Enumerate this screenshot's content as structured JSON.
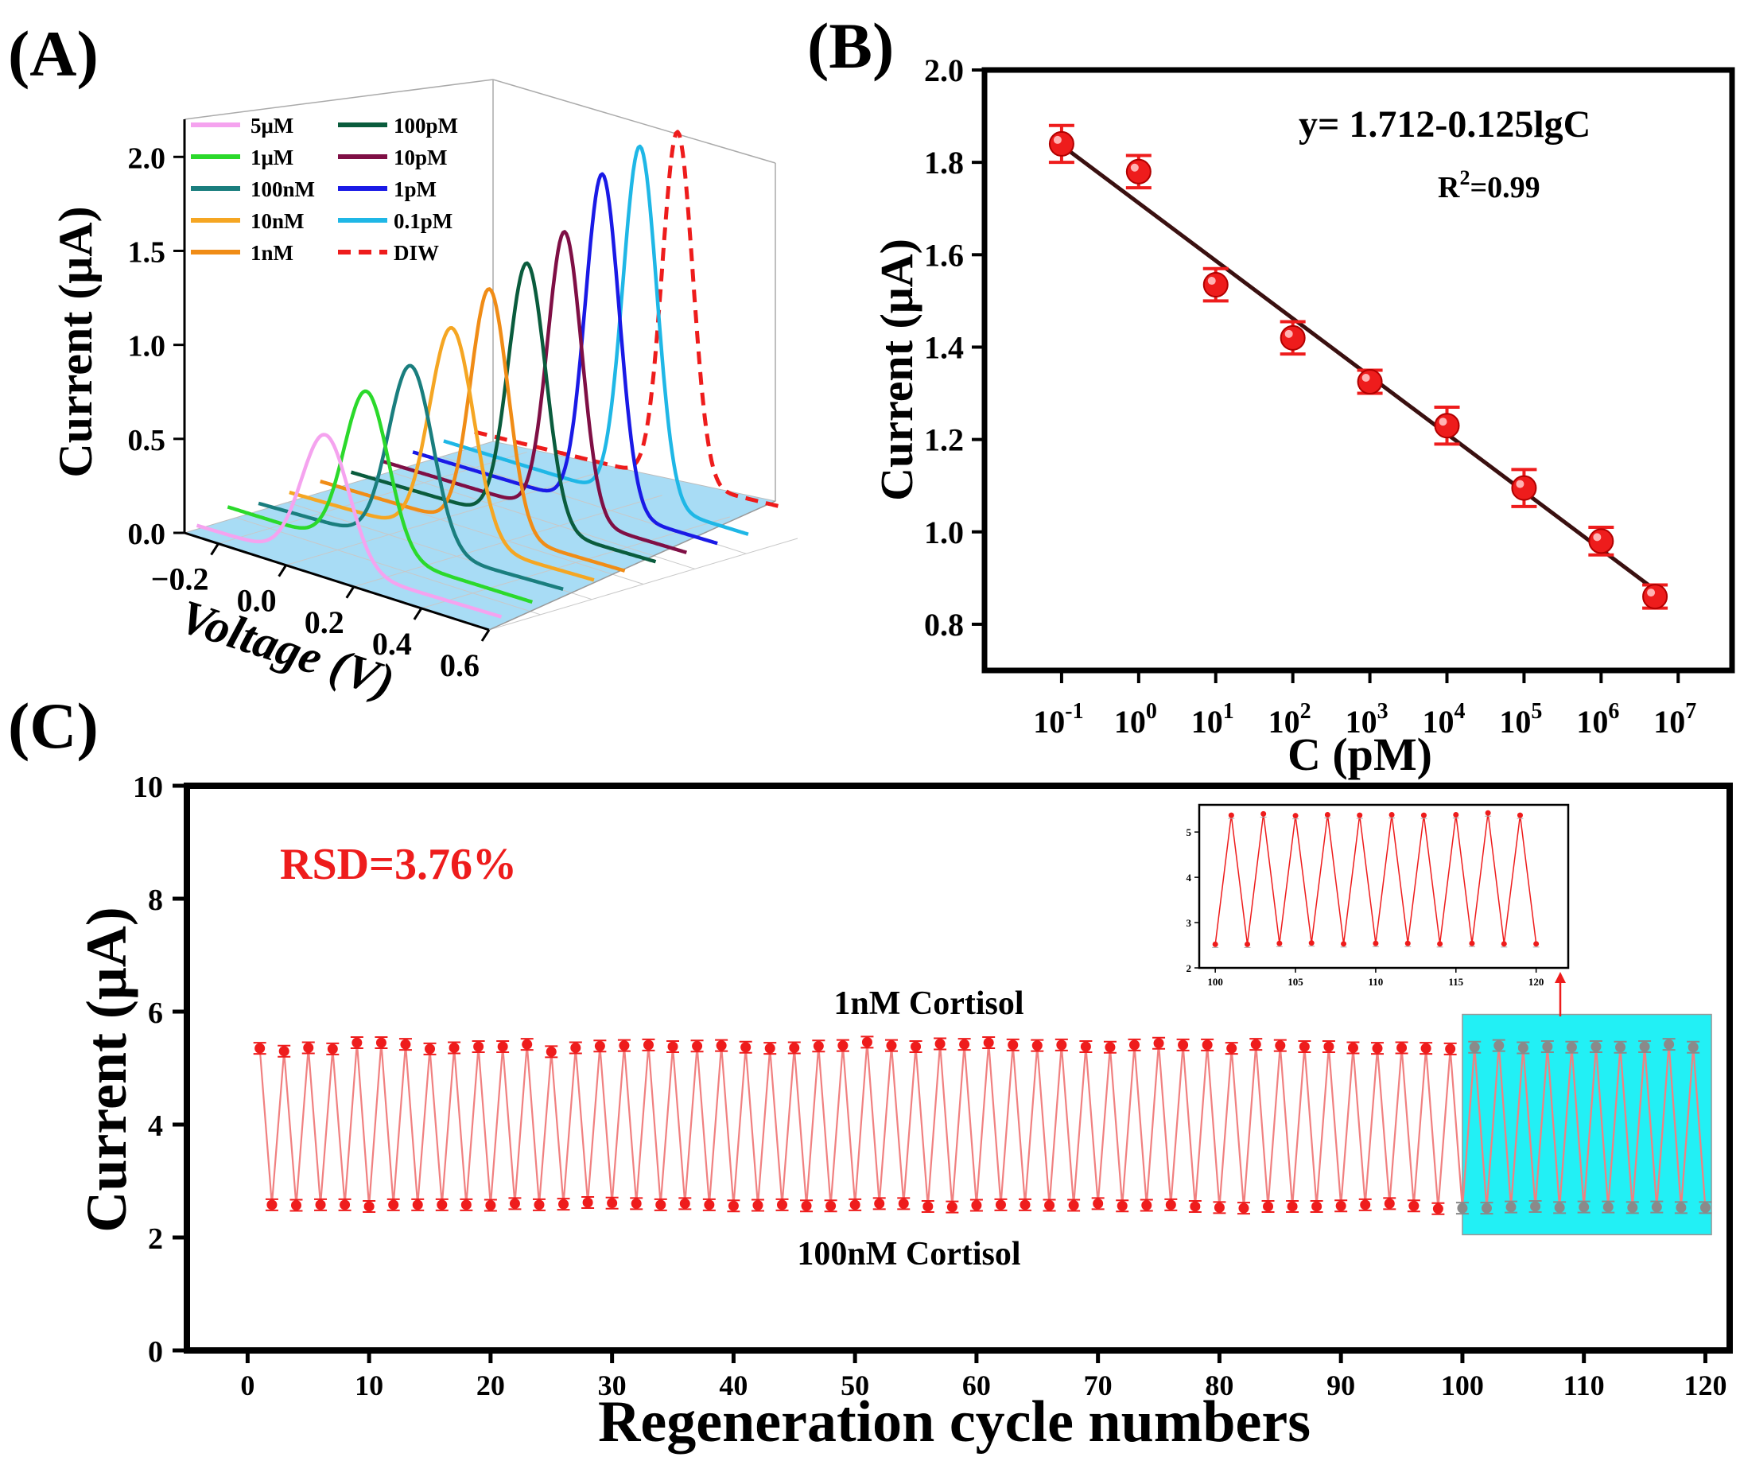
{
  "panels": {
    "a": "(A)",
    "b": "(B)",
    "c": "(C)"
  },
  "chart_data": [
    {
      "id": "A",
      "type": "line",
      "projection": "3d-waterfall",
      "xlabel": "Voltage (V)",
      "ylabel": "Current (μA)",
      "xlim": [
        -0.3,
        0.6
      ],
      "ylim": [
        0.0,
        2.2
      ],
      "xticks": [
        "−0.2",
        "0.0",
        "0.2",
        "0.4",
        "0.6"
      ],
      "xtick_values": [
        -0.2,
        0.0,
        0.2,
        0.4,
        0.6
      ],
      "yticks": [
        "0.0",
        "0.5",
        "1.0",
        "1.5",
        "2.0"
      ],
      "ytick_values": [
        0.0,
        0.5,
        1.0,
        1.5,
        2.0
      ],
      "floor_color": "#a8dcf5",
      "legend_position": "top-left",
      "series": [
        {
          "name": "5μM",
          "color": "#f5a3ef",
          "peak_v": 0.08,
          "peak_i": 0.72,
          "base_i": 0.02,
          "end_i": 0.05,
          "width": 0.07
        },
        {
          "name": "1μM",
          "color": "#2bd92b",
          "peak_v": 0.11,
          "peak_i": 0.92,
          "base_i": 0.07,
          "end_i": 0.08,
          "width": 0.065
        },
        {
          "name": "100nM",
          "color": "#1a7e7e",
          "peak_v": 0.15,
          "peak_i": 1.03,
          "base_i": 0.04,
          "end_i": 0.1,
          "width": 0.065
        },
        {
          "name": "10nM",
          "color": "#f5a623",
          "peak_v": 0.18,
          "peak_i": 1.2,
          "base_i": 0.05,
          "end_i": 0.1,
          "width": 0.065
        },
        {
          "name": "1nM",
          "color": "#f08c16",
          "peak_v": 0.2,
          "peak_i": 1.37,
          "base_i": 0.06,
          "end_i": 0.1,
          "width": 0.055
        },
        {
          "name": "100pM",
          "color": "#0a5c3d",
          "peak_v": 0.22,
          "peak_i": 1.47,
          "base_i": 0.06,
          "end_i": 0.1,
          "width": 0.055
        },
        {
          "name": "10pM",
          "color": "#7f0f45",
          "peak_v": 0.24,
          "peak_i": 1.6,
          "base_i": 0.07,
          "end_i": 0.1,
          "width": 0.05
        },
        {
          "name": "1pM",
          "color": "#1a1ae6",
          "peak_v": 0.26,
          "peak_i": 1.87,
          "base_i": 0.07,
          "end_i": 0.1,
          "width": 0.05
        },
        {
          "name": "0.1pM",
          "color": "#1fb7e6",
          "peak_v": 0.28,
          "peak_i": 1.98,
          "base_i": 0.08,
          "end_i": 0.1,
          "width": 0.05
        },
        {
          "name": "DIW",
          "color": "#ee1c1c",
          "dashed": true,
          "peak_v": 0.3,
          "peak_i": 2.02,
          "base_i": 0.08,
          "end_i": 0.2,
          "width": 0.045
        }
      ]
    },
    {
      "id": "B",
      "type": "scatter",
      "xscale": "log",
      "xlabel": "C (pM)",
      "ylabel": "Current (μA)",
      "xlim": [
        0.01,
        50000000
      ],
      "ylim": [
        0.7,
        2.0
      ],
      "xtick_values": [
        0.1,
        1,
        10,
        100,
        1000,
        10000,
        100000,
        1000000,
        10000000
      ],
      "xtick_exponents": [
        "-1",
        "0",
        "1",
        "2",
        "3",
        "4",
        "5",
        "6",
        "7"
      ],
      "xtick_base": "10",
      "yticks": [
        "0.8",
        "1.0",
        "1.2",
        "1.4",
        "1.6",
        "1.8",
        "2.0"
      ],
      "ytick_values": [
        0.8,
        1.0,
        1.2,
        1.4,
        1.6,
        1.8,
        2.0
      ],
      "points": [
        {
          "x": 0.1,
          "y": 1.84,
          "err": 0.04
        },
        {
          "x": 1,
          "y": 1.78,
          "err": 0.035
        },
        {
          "x": 10,
          "y": 1.535,
          "err": 0.035
        },
        {
          "x": 100,
          "y": 1.42,
          "err": 0.035
        },
        {
          "x": 1000,
          "y": 1.325,
          "err": 0.025
        },
        {
          "x": 10000,
          "y": 1.23,
          "err": 0.04
        },
        {
          "x": 100000,
          "y": 1.095,
          "err": 0.04
        },
        {
          "x": 1000000,
          "y": 0.98,
          "err": 0.03
        },
        {
          "x": 5000000,
          "y": 0.86,
          "err": 0.025
        }
      ],
      "fit": {
        "intercept": 1.712,
        "slope": -0.125,
        "x_from": 0.1,
        "x_to": 5000000
      },
      "equation": "y= 1.712-0.125lgC",
      "r2_label": "R",
      "r2_sup": "2",
      "r2_value": "=0.99",
      "point_color": "#ee1c1c",
      "line_color": "#3a1010"
    },
    {
      "id": "C",
      "type": "line",
      "xlabel": "Regeneration cycle numbers",
      "ylabel": "Current (μA)",
      "xlim": [
        -5,
        122
      ],
      "ylim": [
        0,
        10
      ],
      "xtick_values": [
        0,
        10,
        20,
        30,
        40,
        50,
        60,
        70,
        80,
        90,
        100,
        110,
        120
      ],
      "xticks": [
        "0",
        "10",
        "20",
        "30",
        "40",
        "50",
        "60",
        "70",
        "80",
        "90",
        "100",
        "110",
        "120"
      ],
      "ytick_values": [
        0,
        2,
        4,
        6,
        8,
        10
      ],
      "yticks": [
        "0",
        "2",
        "4",
        "6",
        "8",
        "10"
      ],
      "rsd": "RSD=3.76%",
      "high_label": "1nM Cortisol",
      "low_label": "100nM Cortisol",
      "high_values": [
        5.35,
        5.3,
        5.36,
        5.34,
        5.45,
        5.45,
        5.42,
        5.34,
        5.36,
        5.38,
        5.38,
        5.42,
        5.29,
        5.36,
        5.39,
        5.4,
        5.41,
        5.38,
        5.39,
        5.4,
        5.37,
        5.35,
        5.36,
        5.39,
        5.4,
        5.46,
        5.4,
        5.38,
        5.43,
        5.42,
        5.45,
        5.41,
        5.4,
        5.41,
        5.38,
        5.37,
        5.41,
        5.44,
        5.41,
        5.41,
        5.35,
        5.42,
        5.4,
        5.38,
        5.38,
        5.36,
        5.35,
        5.36,
        5.35,
        5.34,
        5.37,
        5.4,
        5.36,
        5.38,
        5.37,
        5.38,
        5.37,
        5.38,
        5.42,
        5.37
      ],
      "low_values": [
        2.58,
        2.57,
        2.58,
        2.58,
        2.55,
        2.58,
        2.58,
        2.58,
        2.58,
        2.57,
        2.6,
        2.58,
        2.59,
        2.62,
        2.61,
        2.6,
        2.58,
        2.6,
        2.58,
        2.56,
        2.57,
        2.58,
        2.56,
        2.56,
        2.58,
        2.6,
        2.6,
        2.55,
        2.54,
        2.57,
        2.58,
        2.58,
        2.57,
        2.57,
        2.6,
        2.56,
        2.57,
        2.58,
        2.55,
        2.53,
        2.52,
        2.55,
        2.55,
        2.55,
        2.56,
        2.58,
        2.6,
        2.56,
        2.51,
        2.52,
        2.52,
        2.54,
        2.55,
        2.53,
        2.54,
        2.54,
        2.53,
        2.54,
        2.53,
        2.53
      ],
      "highlight": {
        "x_from": 100,
        "x_to": 120.5,
        "y_from": 2.05,
        "y_to": 5.95,
        "color": "#22f0f5"
      },
      "line_color": "#f08080",
      "marker_color": "#ee1c1c",
      "inset": {
        "xlim": [
          99,
          122
        ],
        "ylim": [
          2,
          5.6
        ],
        "xtick_values": [
          100,
          105,
          110,
          115,
          120
        ],
        "xticks": [
          "100",
          "105",
          "110",
          "115",
          "120"
        ],
        "ytick_values": [
          2,
          3,
          4,
          5
        ],
        "yticks": [
          "2",
          "3",
          "4",
          "5"
        ]
      }
    }
  ]
}
